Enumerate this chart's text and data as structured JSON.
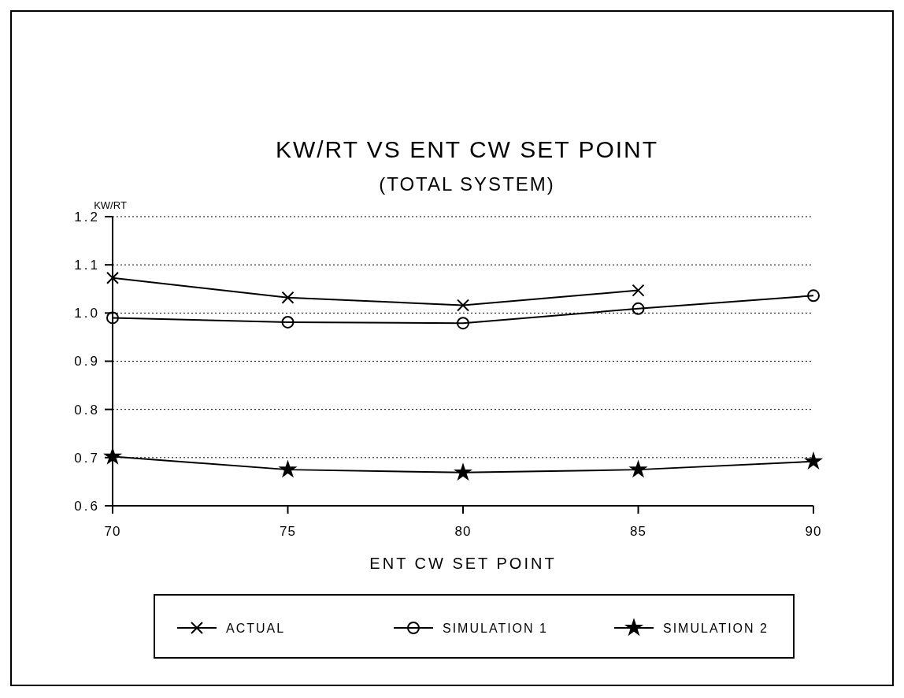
{
  "chart_data": {
    "type": "line",
    "title": "KW/RT VS ENT CW SET POINT",
    "subtitle": "(TOTAL SYSTEM)",
    "xlabel": "ENT CW SET POINT",
    "ylabel": "KW/RT",
    "x": [
      70,
      75,
      80,
      85,
      90
    ],
    "series": [
      {
        "name": "ACTUAL",
        "color": "#000000",
        "marker": "cross",
        "values": [
          1.073,
          1.032,
          1.016,
          1.047,
          null
        ]
      },
      {
        "name": "SIMULATION 1",
        "color": "#000000",
        "marker": "circle",
        "values": [
          0.99,
          0.981,
          0.979,
          1.009,
          1.036
        ]
      },
      {
        "name": "SIMULATION 2",
        "color": "#000000",
        "marker": "star",
        "values": [
          0.702,
          0.675,
          0.669,
          0.675,
          0.692
        ]
      }
    ],
    "xlim": [
      70,
      90
    ],
    "xticks": [
      70,
      75,
      80,
      85,
      90
    ],
    "ylim": [
      0.6,
      1.2
    ],
    "yticks": [
      0.6,
      0.7,
      0.8,
      0.9,
      {
        "value": 1,
        "label": "1.0"
      },
      1.1,
      1.2
    ],
    "grid": "y",
    "legend": "bottom",
    "line_style": "solid"
  }
}
